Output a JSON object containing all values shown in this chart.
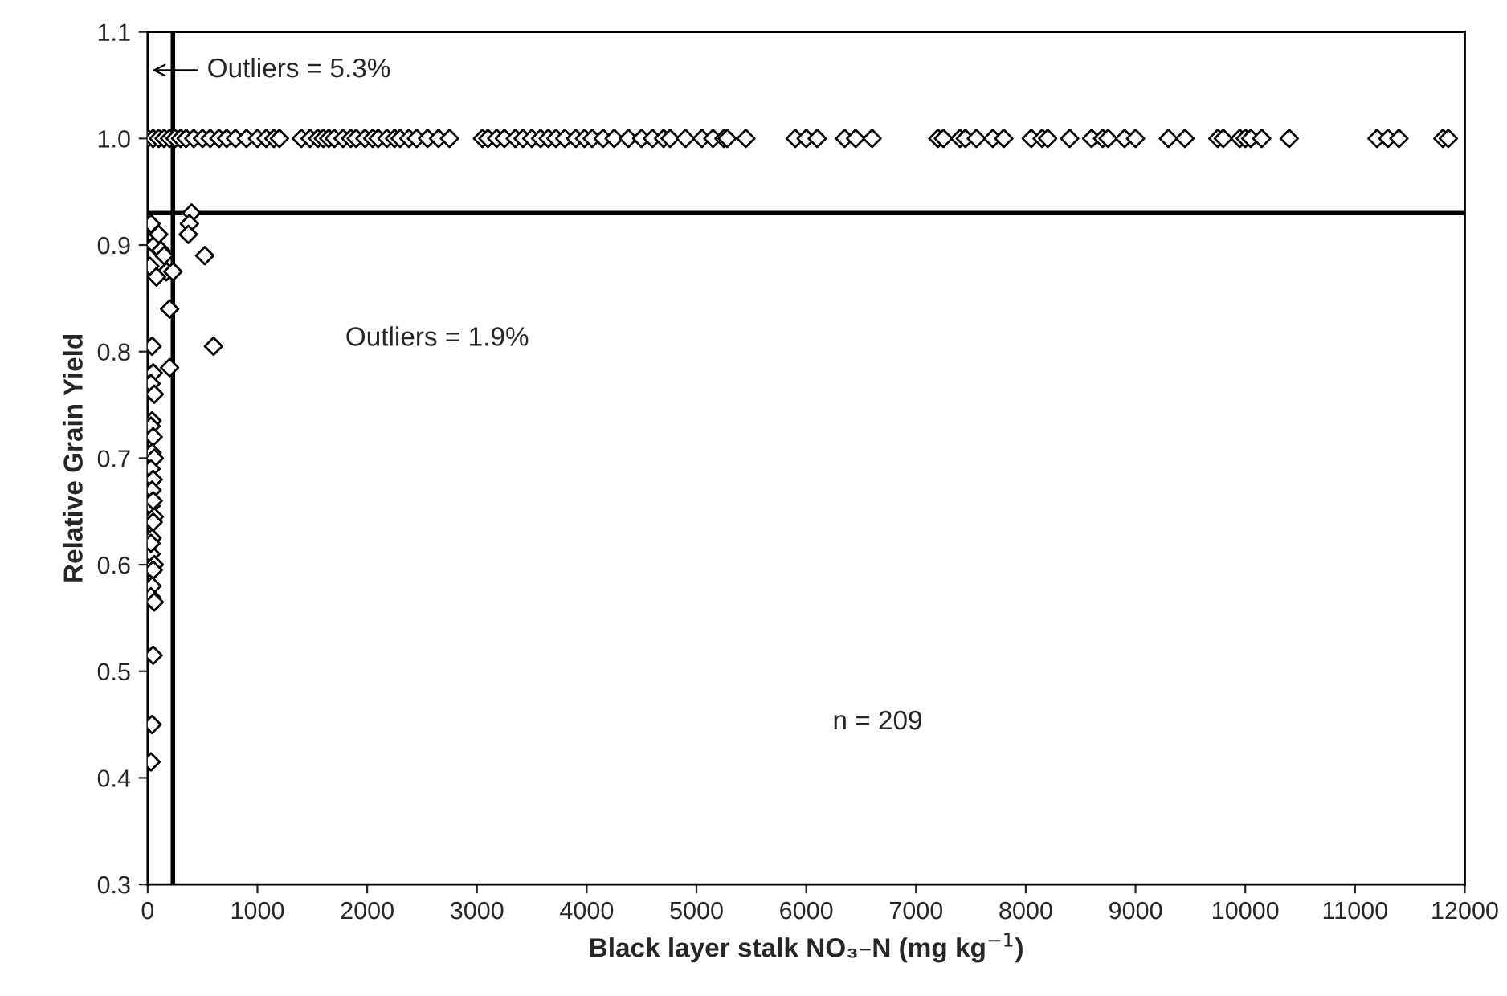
{
  "chart_data": {
    "type": "scatter",
    "xlabel": "Black layer stalk NO₃–N (mg kg$^{−1}$)",
    "ylabel": "Relative Grain Yield",
    "x": [
      0,
      50,
      100,
      150,
      200,
      250,
      300,
      350,
      420,
      500,
      570,
      650,
      720,
      800,
      900,
      1000,
      1080,
      1150,
      1200,
      1400,
      1480,
      1550,
      1600,
      1650,
      1700,
      1780,
      1850,
      1900,
      1980,
      2050,
      2100,
      2180,
      2250,
      2300,
      2380,
      2450,
      2550,
      2650,
      2750,
      3050,
      3100,
      3180,
      3250,
      3350,
      3420,
      3500,
      3580,
      3650,
      3720,
      3800,
      3900,
      3980,
      4050,
      4150,
      4250,
      4380,
      4500,
      4600,
      4700,
      4760,
      4900,
      5050,
      5150,
      5250,
      5280,
      5450,
      5900,
      6000,
      6100,
      6350,
      6450,
      6600,
      7200,
      7250,
      7400,
      7450,
      7550,
      7700,
      7800,
      8050,
      8150,
      8200,
      8400,
      8600,
      8700,
      8750,
      8900,
      9000,
      9300,
      9450,
      9750,
      9800,
      9950,
      10000,
      10050,
      10150,
      10400,
      11200,
      11300,
      11400,
      11800,
      11850,
      30,
      60,
      100,
      120,
      150,
      170,
      230,
      200,
      20,
      80,
      400,
      380,
      370,
      520,
      600,
      200,
      40,
      50,
      30,
      60,
      40,
      30,
      50,
      40,
      60,
      30,
      50,
      40,
      30,
      60,
      50,
      40,
      30,
      60,
      50,
      40,
      30,
      60,
      50,
      40,
      30,
      50,
      30
    ],
    "values": [
      1,
      1,
      1,
      1,
      1,
      1,
      1,
      1,
      1,
      1,
      1,
      1,
      1,
      1,
      1,
      1,
      1,
      1,
      1,
      1,
      1,
      1,
      1,
      1,
      1,
      1,
      1,
      1,
      1,
      1,
      1,
      1,
      1,
      1,
      1,
      1,
      1,
      1,
      1,
      1,
      1,
      1,
      1,
      1,
      1,
      1,
      1,
      1,
      1,
      1,
      1,
      1,
      1,
      1,
      1,
      1,
      1,
      1,
      1,
      1,
      1,
      1,
      1,
      1,
      1,
      1,
      1,
      1,
      1,
      1,
      1,
      1,
      1,
      1,
      1,
      1,
      1,
      1,
      1,
      1,
      1,
      1,
      1,
      1,
      1,
      1,
      1,
      1,
      1,
      1,
      1,
      1,
      1,
      1,
      1,
      1,
      1,
      1,
      1,
      1,
      1,
      1,
      0.92,
      0.9,
      0.91,
      0.895,
      0.89,
      0.875,
      0.875,
      0.84,
      0.88,
      0.87,
      0.93,
      0.92,
      0.91,
      0.89,
      0.805,
      0.785,
      0.805,
      0.78,
      0.77,
      0.76,
      0.735,
      0.73,
      0.72,
      0.705,
      0.7,
      0.69,
      0.68,
      0.67,
      0.655,
      0.645,
      0.64,
      0.625,
      0.61,
      0.6,
      0.595,
      0.58,
      0.57,
      0.565,
      0.515,
      0.45,
      0.415,
      0.66,
      0.62
    ],
    "color": "#000000",
    "marker": "diamond",
    "xlim": [
      0,
      12000
    ],
    "xticks": [
      0,
      1000,
      2000,
      3000,
      4000,
      5000,
      6000,
      7000,
      8000,
      9000,
      10000,
      11000,
      12000
    ],
    "ylim": [
      0.3,
      1.1
    ],
    "yticks": [
      0.3,
      0.4,
      0.5,
      0.6,
      0.7,
      0.8,
      0.9,
      {
        "value": 1,
        "label": "1.0"
      },
      1.1
    ],
    "ref_lines": [
      {
        "axis": "x",
        "value": 230,
        "color": "#000000"
      },
      {
        "axis": "y",
        "value": 0.93,
        "color": "#000000"
      }
    ],
    "annotations": [
      "Outliers = 5.3%",
      "Outliers = 1.9%",
      "n = 209"
    ],
    "grid": false
  }
}
